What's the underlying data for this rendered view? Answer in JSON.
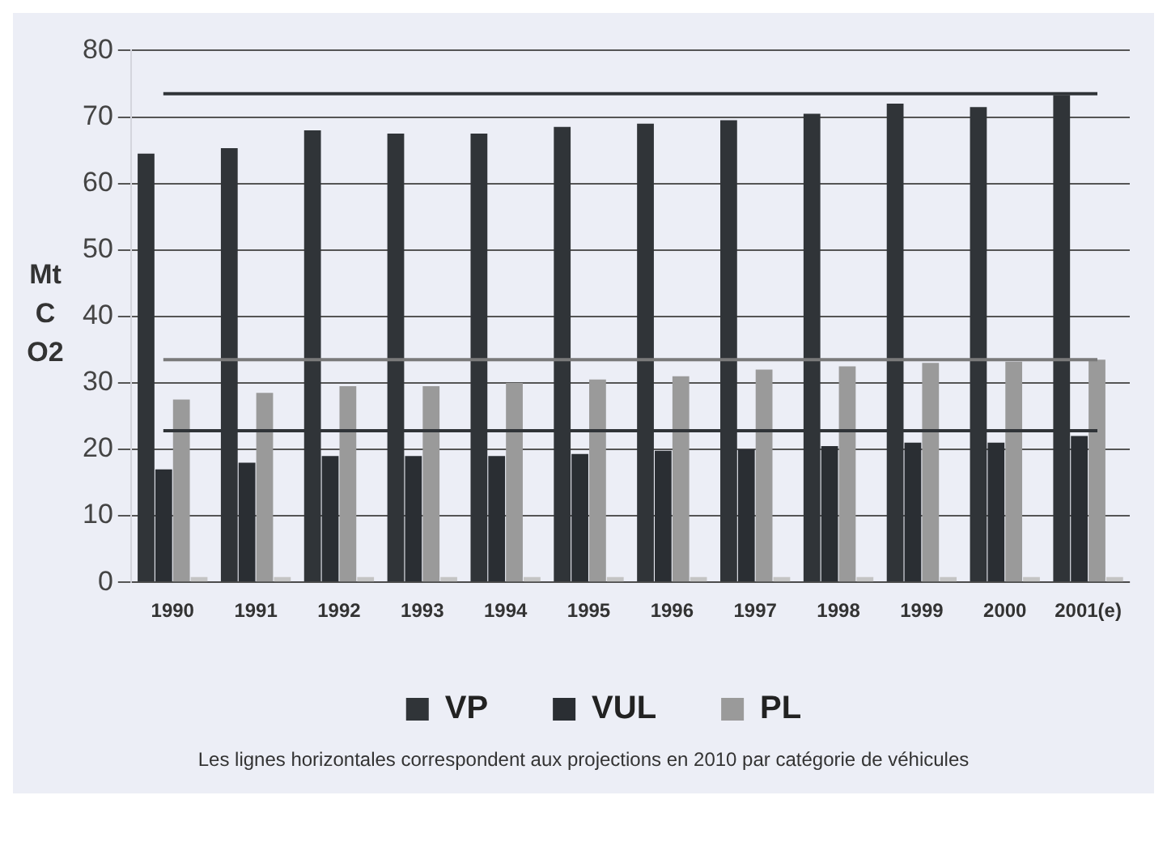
{
  "chart_data": {
    "type": "bar",
    "ylabel": "Mt C O2",
    "categories": [
      "1990",
      "1991",
      "1992",
      "1993",
      "1994",
      "1995",
      "1996",
      "1997",
      "1998",
      "1999",
      "2000",
      "2001(e)"
    ],
    "series": [
      {
        "name": "VP",
        "color": "#303438",
        "values": [
          64.5,
          65.3,
          68,
          67.5,
          67.5,
          68.5,
          69,
          69.5,
          70.5,
          72,
          71.5,
          73.3
        ]
      },
      {
        "name": "VUL",
        "color": "#2a2e33",
        "values": [
          17,
          18,
          19,
          19,
          19,
          19.3,
          19.8,
          20,
          20.5,
          21,
          21,
          22
        ]
      },
      {
        "name": "PL",
        "color": "#9a9a9a",
        "values": [
          27.5,
          28.5,
          29.5,
          29.5,
          30,
          30.5,
          31,
          32,
          32.5,
          33,
          33.2,
          33.5
        ]
      },
      {
        "color": "#c4c4c4",
        "values": [
          0.8,
          0.8,
          0.8,
          0.8,
          0.8,
          0.8,
          0.8,
          0.8,
          0.8,
          0.8,
          0.8,
          0.8
        ]
      }
    ],
    "ylim": [
      0,
      80
    ],
    "yticks": [
      0,
      10,
      20,
      30,
      40,
      50,
      60,
      70,
      80
    ],
    "grid": "y",
    "legend": "bottom",
    "ref_lines": [
      {
        "axis": "y",
        "value": 73.5,
        "color": "#303438"
      },
      {
        "axis": "y",
        "value": 33.5,
        "color": "#7a7a7a"
      },
      {
        "axis": "y",
        "value": 22.8,
        "color": "#303438"
      }
    ],
    "annotations": [
      "Les lignes horizontales correspondent aux projections en 2010 par catégorie de véhicules"
    ]
  }
}
